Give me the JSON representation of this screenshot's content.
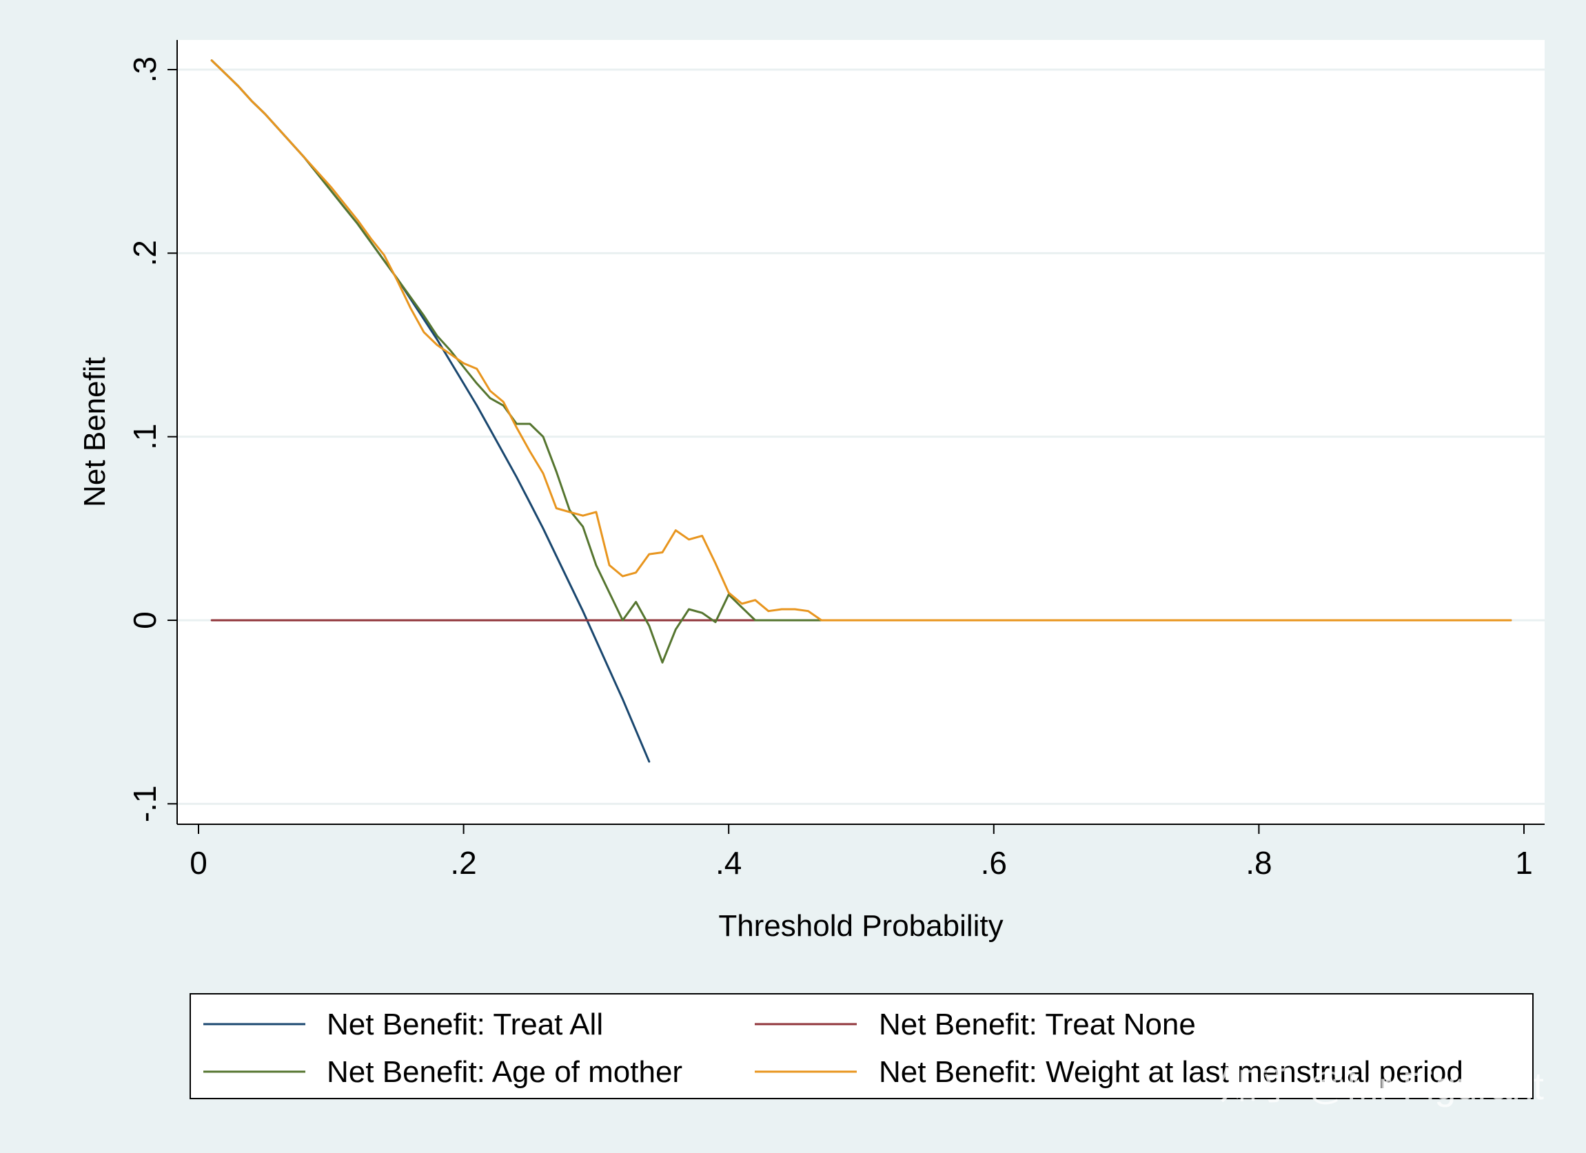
{
  "chart_data": {
    "type": "line",
    "xlabel": "Threshold Probability",
    "ylabel": "Net Benefit",
    "xlim": [
      0,
      1
    ],
    "ylim": [
      -0.1,
      0.3
    ],
    "x_ticks": [
      {
        "value": 0,
        "label": "0"
      },
      {
        "value": 0.2,
        "label": ".2"
      },
      {
        "value": 0.4,
        "label": ".4"
      },
      {
        "value": 0.6,
        "label": ".6"
      },
      {
        "value": 0.8,
        "label": ".8"
      },
      {
        "value": 1,
        "label": "1"
      }
    ],
    "y_ticks": [
      {
        "value": -0.1,
        "label": "-.1"
      },
      {
        "value": 0,
        "label": "0"
      },
      {
        "value": 0.1,
        "label": ".1"
      },
      {
        "value": 0.2,
        "label": ".2"
      },
      {
        "value": 0.3,
        "label": ".3"
      }
    ],
    "grid": "horizontal",
    "legend_position": "bottom",
    "series": [
      {
        "name": "Net Benefit: Treat All",
        "color": "#1a476f",
        "x": [
          0.01,
          0.02,
          0.03,
          0.04,
          0.05,
          0.06,
          0.07,
          0.08,
          0.09,
          0.1,
          0.11,
          0.12,
          0.13,
          0.14,
          0.15,
          0.16,
          0.17,
          0.18,
          0.19,
          0.2,
          0.21,
          0.22,
          0.23,
          0.24,
          0.25,
          0.26,
          0.27,
          0.28,
          0.29,
          0.3,
          0.31,
          0.32,
          0.33,
          0.34
        ],
        "y": [
          0.305,
          0.298,
          0.291,
          0.283,
          0.276,
          0.268,
          0.26,
          0.252,
          0.243,
          0.234,
          0.225,
          0.216,
          0.206,
          0.196,
          0.186,
          0.175,
          0.164,
          0.153,
          0.141,
          0.129,
          0.117,
          0.104,
          0.091,
          0.078,
          0.064,
          0.05,
          0.035,
          0.02,
          0.005,
          -0.011,
          -0.027,
          -0.043,
          -0.06,
          -0.077
        ]
      },
      {
        "name": "Net Benefit: Treat None",
        "color": "#90353b",
        "x": [
          0.01,
          0.99
        ],
        "y": [
          0,
          0
        ]
      },
      {
        "name": "Net Benefit: Age of mother",
        "color": "#55752f",
        "x": [
          0.01,
          0.02,
          0.03,
          0.04,
          0.05,
          0.06,
          0.07,
          0.08,
          0.09,
          0.1,
          0.11,
          0.12,
          0.13,
          0.14,
          0.15,
          0.16,
          0.17,
          0.18,
          0.19,
          0.2,
          0.21,
          0.22,
          0.23,
          0.24,
          0.25,
          0.26,
          0.27,
          0.28,
          0.29,
          0.3,
          0.31,
          0.32,
          0.33,
          0.34,
          0.35,
          0.36,
          0.37,
          0.38,
          0.39,
          0.4,
          0.41,
          0.42,
          0.43,
          0.44,
          0.45,
          0.46,
          0.47
        ],
        "y": [
          0.305,
          0.298,
          0.291,
          0.283,
          0.276,
          0.268,
          0.26,
          0.252,
          0.243,
          0.234,
          0.225,
          0.216,
          0.206,
          0.196,
          0.186,
          0.176,
          0.166,
          0.155,
          0.147,
          0.138,
          0.129,
          0.121,
          0.117,
          0.107,
          0.107,
          0.1,
          0.081,
          0.06,
          0.051,
          0.03,
          0.015,
          0.0,
          0.01,
          -0.003,
          -0.023,
          -0.005,
          0.006,
          0.004,
          -0.001,
          0.014,
          0.007,
          0.0,
          0.0,
          0.0,
          0.0,
          0.0,
          0.0
        ]
      },
      {
        "name": "Net Benefit: Weight at last menstrual period",
        "color": "#e8951e",
        "x": [
          0.01,
          0.02,
          0.03,
          0.04,
          0.05,
          0.06,
          0.07,
          0.08,
          0.09,
          0.1,
          0.11,
          0.12,
          0.13,
          0.14,
          0.15,
          0.16,
          0.17,
          0.18,
          0.19,
          0.2,
          0.21,
          0.22,
          0.23,
          0.24,
          0.25,
          0.26,
          0.27,
          0.28,
          0.29,
          0.3,
          0.31,
          0.32,
          0.33,
          0.34,
          0.35,
          0.36,
          0.37,
          0.38,
          0.39,
          0.4,
          0.41,
          0.42,
          0.43,
          0.44,
          0.45,
          0.46,
          0.47,
          0.99
        ],
        "y": [
          0.305,
          0.298,
          0.291,
          0.283,
          0.276,
          0.268,
          0.26,
          0.252,
          0.244,
          0.236,
          0.227,
          0.218,
          0.208,
          0.199,
          0.185,
          0.17,
          0.157,
          0.15,
          0.145,
          0.14,
          0.137,
          0.125,
          0.119,
          0.105,
          0.092,
          0.08,
          0.061,
          0.059,
          0.057,
          0.059,
          0.03,
          0.024,
          0.026,
          0.036,
          0.037,
          0.049,
          0.044,
          0.046,
          0.031,
          0.015,
          0.009,
          0.011,
          0.005,
          0.006,
          0.006,
          0.005,
          0.0,
          0.0
        ]
      }
    ],
    "watermark": "知乎 @Mr Figurant"
  }
}
